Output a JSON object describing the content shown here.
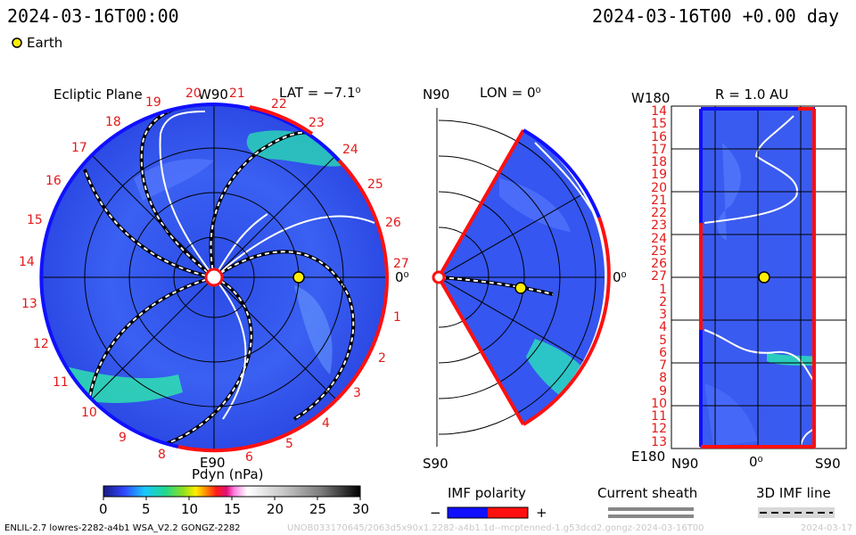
{
  "header": {
    "time_left": "2024-03-16T00:00",
    "time_right": "2024-03-16T00 +0.00 day",
    "legend_marker_label": "Earth"
  },
  "ecliptic": {
    "title": "Ecliptic Plane",
    "lat_label": "LAT = −7.1⁰",
    "top_label": "W90",
    "bottom_label": "E90",
    "right_label": "0⁰",
    "rotation_labels": [
      "19",
      "20",
      "21",
      "22",
      "23",
      "24",
      "25",
      "26",
      "27",
      "1",
      "2",
      "3",
      "4",
      "5",
      "6",
      "7",
      "8",
      "9",
      "10",
      "11",
      "12",
      "13",
      "14",
      "15",
      "16",
      "17",
      "18"
    ]
  },
  "meridional": {
    "title": "LON = 0⁰",
    "top_label": "N90",
    "bottom_label": "S90",
    "right_label": "0⁰"
  },
  "radial": {
    "title": "R = 1.0 AU",
    "top_left_label": "W180",
    "bottom_left_label": "E180",
    "bottom_labels": [
      "N90",
      "0⁰",
      "S90"
    ],
    "rotation_labels": [
      "14",
      "15",
      "16",
      "17",
      "18",
      "19",
      "20",
      "21",
      "22",
      "23",
      "24",
      "25",
      "26",
      "27",
      "1",
      "2",
      "3",
      "4",
      "5",
      "6",
      "7",
      "8",
      "9",
      "10",
      "11",
      "12",
      "13"
    ]
  },
  "colorbar": {
    "title": "Pdyn (nPa)",
    "ticks": [
      "0",
      "5",
      "10",
      "15",
      "20",
      "25",
      "30"
    ]
  },
  "legend": {
    "imf_polarity": "IMF polarity",
    "imf_minus": "−",
    "imf_plus": "+",
    "current_sheath": "Current sheath",
    "imf_line": "3D IMF line"
  },
  "footer": {
    "model_info": "ENLIL-2.7 lowres-2282-a4b1 WSA_V2.2 GONGZ-2282",
    "run_info": "UNOB033170645/2063d5x90x1.2282-a4b1.1d--mcptenned-1.g53dcd2.gongz-2024-03-16T00",
    "run_date": "2024-03-17"
  },
  "colors": {
    "imf_negative": "#1010ff",
    "imf_positive": "#ff1010",
    "background_field": "#3b5bf0",
    "enhanced_density": "#22d6b0",
    "earth": "#ffee00"
  }
}
